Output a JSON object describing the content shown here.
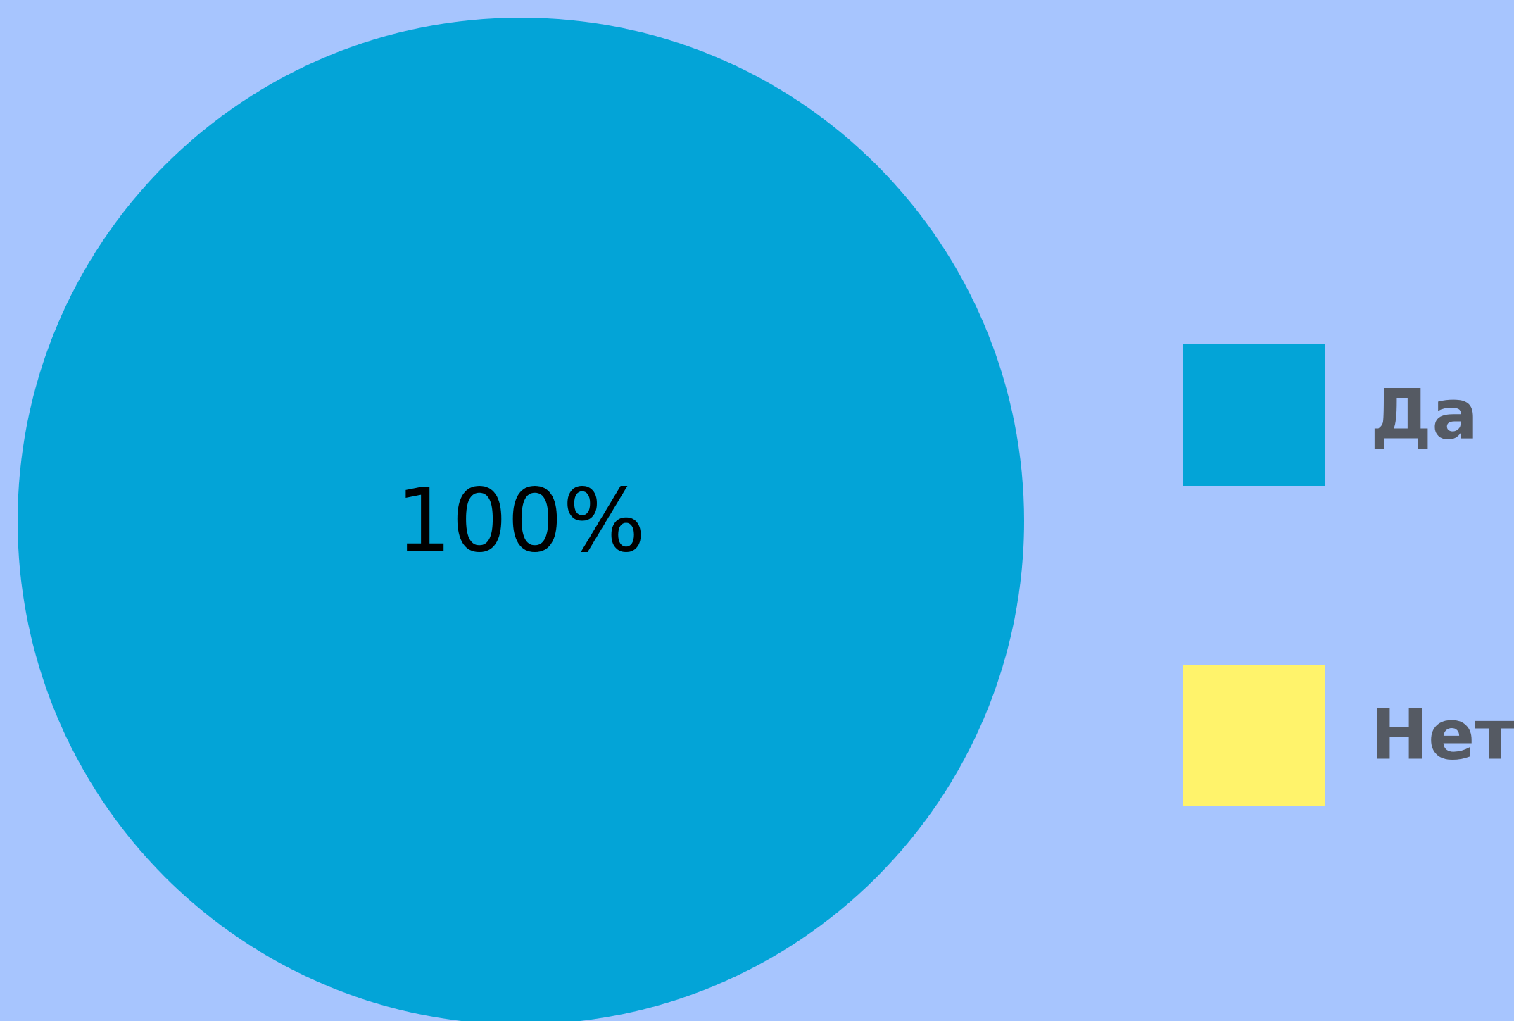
{
  "chart_data": {
    "type": "pie",
    "title": "",
    "slices": [
      {
        "label": "Да",
        "value": 100,
        "percent_label": "100%",
        "color": "#03a4d7"
      },
      {
        "label": "Нет",
        "value": 0,
        "percent_label": "",
        "color": "#fff36b"
      }
    ],
    "legend_position": "right",
    "background": "#a7c5fe"
  }
}
